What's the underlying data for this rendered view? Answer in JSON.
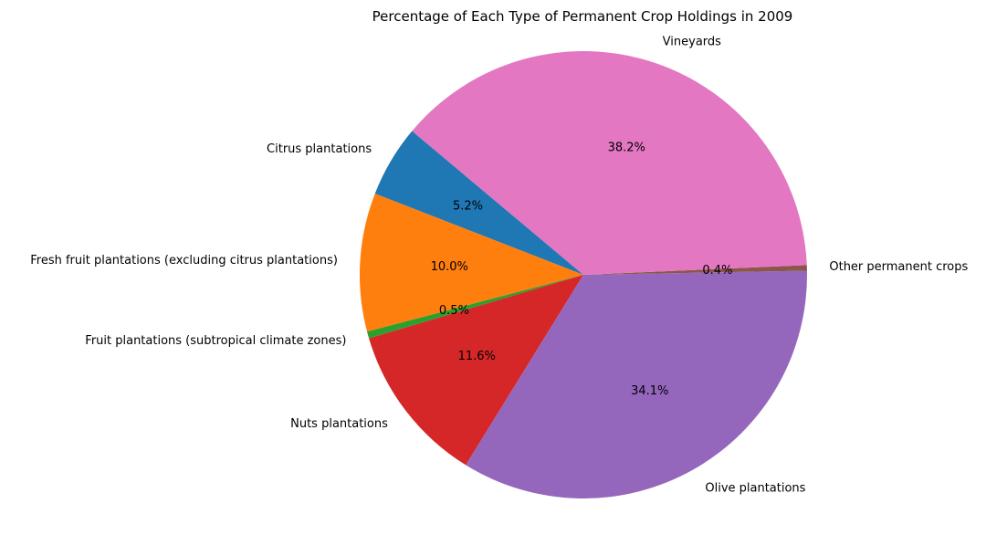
{
  "chart_data": {
    "type": "pie",
    "title": "Percentage of Each Type of Permanent Crop Holdings in 2009",
    "categories": [
      "Citrus plantations",
      "Fresh fruit plantations (excluding citrus plantations)",
      "Fruit plantations (subtropical climate zones)",
      "Nuts plantations",
      "Olive plantations",
      "Other permanent crops",
      "Vineyards"
    ],
    "values": [
      5.2,
      10.0,
      0.5,
      11.6,
      34.1,
      0.4,
      38.2
    ],
    "value_labels": [
      "5.2%",
      "10.0%",
      "0.5%",
      "11.6%",
      "34.1%",
      "0.4%",
      "38.2%"
    ],
    "colors": [
      "#1f77b4",
      "#ff7f0e",
      "#2ca02c",
      "#d62728",
      "#9467bd",
      "#8c564b",
      "#e377c2"
    ],
    "start_angle_deg": 140,
    "direction": "counterclockwise",
    "legend": "none"
  }
}
